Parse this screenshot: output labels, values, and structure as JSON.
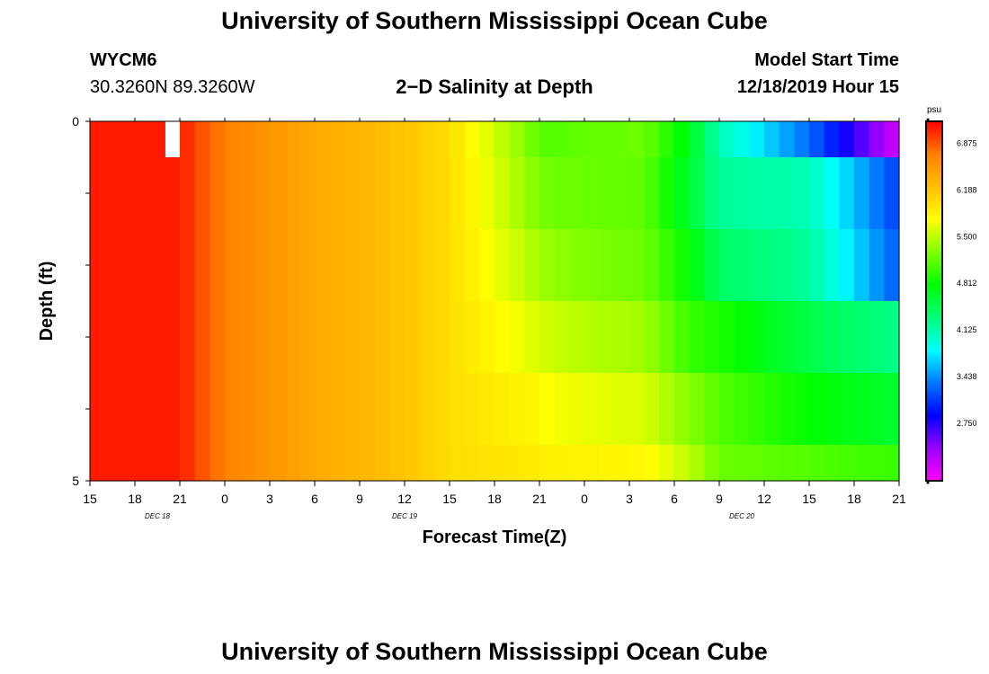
{
  "header": {
    "title": "University of Southern Mississippi Ocean Cube",
    "footer_title": "University of Southern Mississippi Ocean Cube",
    "station": "WYCM6",
    "coords": "30.3260N 89.3260W",
    "plot_title": "2−D Salinity at Depth",
    "model_label": "Model Start Time",
    "model_time": "12/18/2019 Hour 15"
  },
  "chart_data": {
    "type": "heatmap",
    "title": "2−D Salinity at Depth",
    "xlabel": "Forecast Time(Z)",
    "ylabel": "Depth (ft)",
    "ylim": [
      0,
      5
    ],
    "y_ticks": [
      "0",
      "5"
    ],
    "x_tick_labels": [
      "15",
      "18",
      "21",
      "0",
      "3",
      "6",
      "9",
      "12",
      "15",
      "18",
      "21",
      "0",
      "3",
      "6",
      "9",
      "12",
      "15",
      "18",
      "21"
    ],
    "x_date_labels": [
      {
        "label": "DEC  18",
        "at_tick": 1.5
      },
      {
        "label": "DEC  19",
        "at_tick": 7
      },
      {
        "label": "DEC  20",
        "at_tick": 14.5
      }
    ],
    "colorbar": {
      "unit": "psu",
      "min": 1.9,
      "max": 7.2,
      "tick_values": [
        "6.875",
        "6.188",
        "5.500",
        "4.812",
        "4.125",
        "3.438",
        "2.750"
      ]
    },
    "depth_layers": [
      "0-0.5",
      "0.5-1.5",
      "1.5-2.5",
      "2.5-3.5",
      "3.5-4.5",
      "4.5-5"
    ],
    "columns_per_hour": 1,
    "profile_hours": [
      0,
      6,
      7,
      9,
      15,
      21,
      24,
      30,
      31,
      32,
      37,
      40,
      42,
      48,
      54
    ],
    "layer_profiles": [
      [
        7.1,
        7.1,
        6.95,
        6.7,
        6.4,
        6.2,
        6.0,
        5.15,
        5.1,
        5.15,
        5.2,
        4.7,
        4.1,
        3.3,
        2.1
      ],
      [
        7.1,
        7.1,
        6.95,
        6.7,
        6.4,
        6.2,
        6.0,
        5.25,
        5.2,
        5.2,
        5.15,
        4.6,
        4.2,
        4.1,
        3.1
      ],
      [
        7.1,
        7.1,
        6.95,
        6.7,
        6.4,
        6.2,
        6.0,
        5.4,
        5.35,
        5.3,
        5.2,
        4.8,
        4.4,
        4.2,
        3.2
      ],
      [
        7.1,
        7.1,
        6.95,
        6.7,
        6.4,
        6.2,
        6.0,
        5.6,
        5.55,
        5.5,
        5.4,
        5.0,
        4.9,
        4.5,
        4.25
      ],
      [
        7.1,
        7.1,
        6.95,
        6.7,
        6.4,
        6.2,
        6.0,
        5.8,
        5.7,
        5.7,
        5.6,
        5.3,
        5.1,
        4.8,
        4.6
      ],
      [
        7.1,
        7.1,
        6.95,
        6.7,
        6.4,
        6.2,
        6.0,
        5.9,
        5.85,
        5.85,
        5.8,
        5.5,
        5.2,
        5.1,
        5.0
      ]
    ],
    "missing_cells": [
      {
        "hour": 5,
        "layer": 0
      }
    ],
    "colors": {
      "scale": [
        "#ff00ff",
        "#9a00ff",
        "#0000ff",
        "#0078ff",
        "#00ffff",
        "#00ff7a",
        "#00ff00",
        "#7fff00",
        "#ffff00",
        "#ffbf00",
        "#ff8000",
        "#ff0000"
      ]
    }
  }
}
